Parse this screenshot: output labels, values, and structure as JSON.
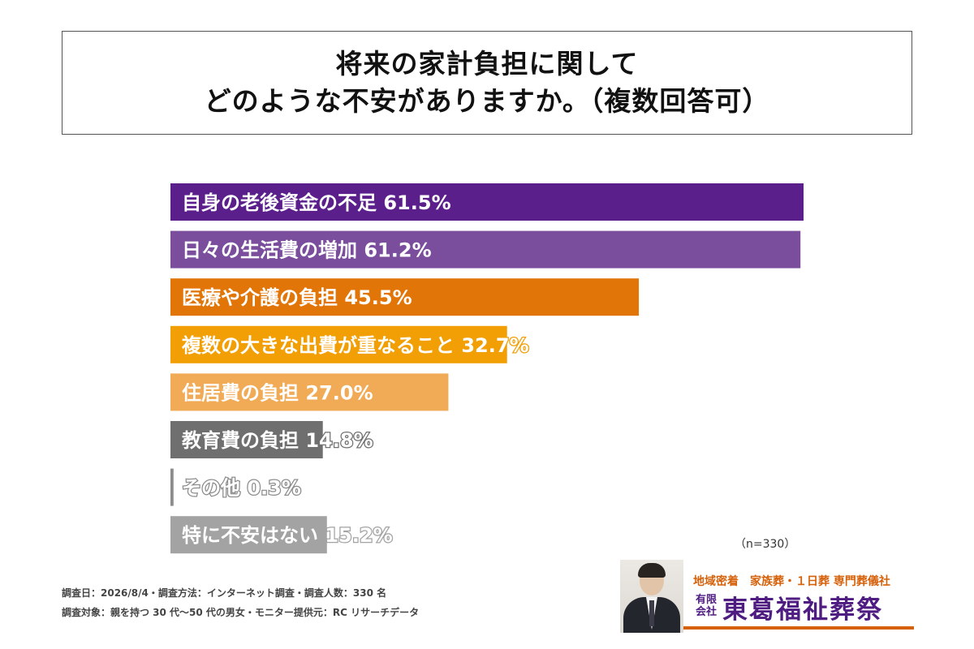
{
  "title": {
    "line1": "将来の家計負担に関して",
    "line2": "どのような不安がありますか。（複数回答可）"
  },
  "chart_data": {
    "type": "bar",
    "orientation": "horizontal",
    "categories": [
      "自身の老後資金の不足",
      "日々の生活費の増加",
      "医療や介護の負担",
      "複数の大きな出費が重なること",
      "住居費の負担",
      "教育費の負担",
      "その他",
      "特に不安はない"
    ],
    "values": [
      61.5,
      61.2,
      45.5,
      32.7,
      27.0,
      14.8,
      0.3,
      15.2
    ],
    "value_labels": [
      "61.5%",
      "61.2%",
      "45.5%",
      "32.7%",
      "27.0%",
      "14.8%",
      "0.3%",
      "15.2%"
    ],
    "colors": [
      "#5b1f8c",
      "#7a4e9c",
      "#e27507",
      "#f29f05",
      "#f1aa55",
      "#6f6f6f",
      "#8c8c8c",
      "#a3a3a3"
    ],
    "xlim": [
      0,
      61.5
    ],
    "grid": false,
    "legend": "none"
  },
  "sample_note": "（n=330）",
  "footer": {
    "line1": "調査日：2026/8/4・調査方法：インターネット調査・調査人数：330 名",
    "line2": "調査対象：親を持つ 30 代〜50 代の男女・モニター提供元：RC リサーチデータ"
  },
  "logo": {
    "tagline": "地域密着　家族葬・１日葬 専門葬儀社",
    "badge_top": "有限",
    "badge_bottom": "会社",
    "name": "東葛福祉葬祭"
  }
}
